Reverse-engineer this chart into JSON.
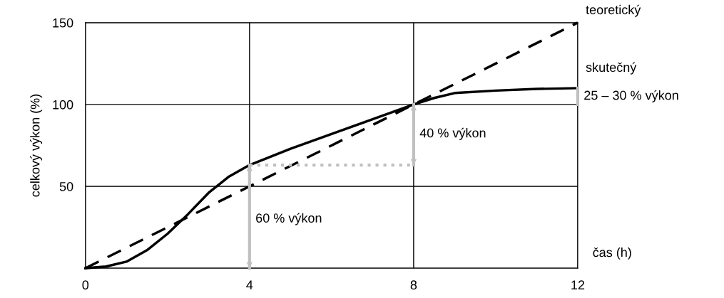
{
  "chart_data": {
    "type": "line",
    "ylabel": "celkový výkon (%)",
    "xlabel": "čas (h)",
    "xlim": [
      0,
      12
    ],
    "ylim": [
      0,
      150
    ],
    "xticks": [
      0,
      4,
      8,
      12
    ],
    "yticks": [
      {
        "value": 0,
        "label": null
      },
      50,
      100,
      150
    ],
    "grid": true,
    "legend": false,
    "series": [
      {
        "name": "teoretický",
        "color": "#000000",
        "line_style": "dashed",
        "x": [
          0,
          12
        ],
        "values": [
          0,
          150
        ]
      },
      {
        "name": "skutečný",
        "color": "#000000",
        "line_style": "solid",
        "x": [
          0,
          0.5,
          1,
          1.5,
          2,
          2.5,
          3,
          3.5,
          4,
          4.5,
          5,
          6,
          7,
          8,
          8.5,
          9,
          10,
          11,
          12
        ],
        "values": [
          0,
          1,
          4,
          11,
          21,
          33,
          46,
          56,
          63,
          68,
          73,
          82,
          91,
          100,
          104,
          107,
          108.5,
          109.5,
          110
        ]
      },
      {
        "color": "#c0c0c0",
        "line_style": "solid",
        "x": [
          4,
          4
        ],
        "values": [
          0,
          63
        ]
      },
      {
        "color": "#c0c0c0",
        "line_style": "solid",
        "x": [
          8,
          8
        ],
        "values": [
          63,
          100
        ]
      },
      {
        "color": "#c0c0c0",
        "line_style": "dotted",
        "x": [
          4,
          8
        ],
        "values": [
          63,
          63
        ]
      },
      {
        "color": "#c0c0c0",
        "line_style": "solid",
        "x": [
          12,
          12
        ],
        "values": [
          100,
          110
        ]
      }
    ],
    "annotations": [
      {
        "text": "60 % výkon",
        "x": 4,
        "y": 30
      },
      {
        "text": "40 % výkon",
        "x": 8,
        "y": 82
      },
      {
        "text": "25 – 30 % výkon",
        "x": 12,
        "y": 105
      }
    ]
  }
}
